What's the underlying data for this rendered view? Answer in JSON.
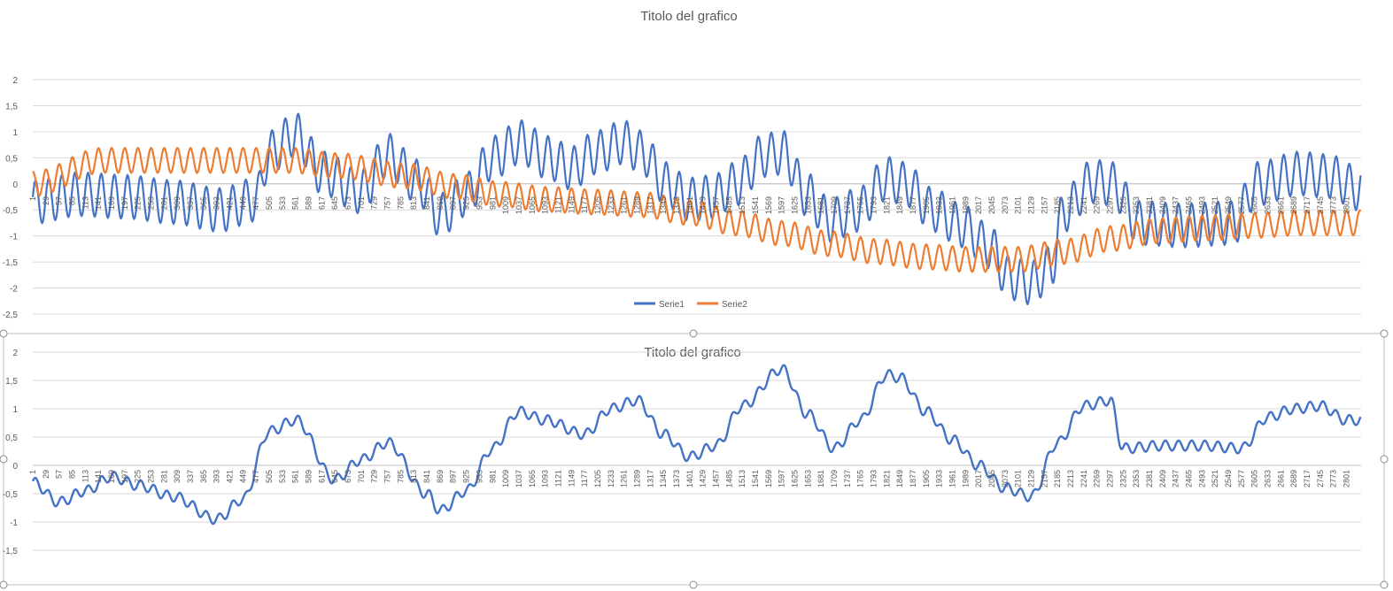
{
  "chart_data": [
    {
      "type": "line",
      "title": "Titolo del grafico",
      "x_range": [
        1,
        2832
      ],
      "ylim": [
        -2.5,
        2
      ],
      "y_ticks": [
        "2",
        "1,5",
        "1",
        "0,5",
        "0",
        "-0,5",
        "-1",
        "-1,5",
        "-2",
        "-2,5"
      ],
      "x_tick_labels": [
        "1",
        "29",
        "57",
        "85",
        "113",
        "141",
        "169",
        "197",
        "225",
        "253",
        "281",
        "309",
        "337",
        "365",
        "393",
        "421",
        "449",
        "477",
        "505",
        "533",
        "561",
        "589",
        "617",
        "645",
        "673",
        "701",
        "729",
        "757",
        "785",
        "813",
        "841",
        "869",
        "897",
        "925",
        "953",
        "981",
        "1009",
        "1037",
        "1065",
        "1093",
        "1121",
        "1149",
        "1177",
        "1205",
        "1233",
        "1261",
        "1289",
        "1317",
        "1345",
        "1373",
        "1401",
        "1429",
        "1457",
        "1485",
        "1513",
        "1541",
        "1569",
        "1597",
        "1625",
        "1653",
        "1681",
        "1709",
        "1737",
        "1765",
        "1793",
        "1821",
        "1849",
        "1877",
        "1905",
        "1933",
        "1961",
        "1989",
        "2017",
        "2045",
        "2073",
        "2101",
        "2129",
        "2157",
        "2185",
        "2213",
        "2241",
        "2269",
        "2297",
        "2325",
        "2353",
        "2381",
        "2409",
        "2437",
        "2465",
        "2493",
        "2521",
        "2549",
        "2577",
        "2605",
        "2633",
        "2661",
        "2689",
        "2717",
        "2745",
        "2773",
        "2801"
      ],
      "grid": true,
      "legend": "bottom-center",
      "series": [
        {
          "name": "Serie1",
          "color": "#4472C4",
          "envelope_x": [
            1,
            100,
            200,
            300,
            400,
            477,
            505,
            560,
            620,
            700,
            757,
            820,
            870,
            925,
            981,
            1040,
            1100,
            1150,
            1200,
            1260,
            1300,
            1350,
            1400,
            1450,
            1500,
            1560,
            1600,
            1650,
            1700,
            1760,
            1820,
            1860,
            1920,
            1980,
            2040,
            2080,
            2130,
            2170,
            2200,
            2260,
            2300,
            2360,
            2450,
            2560,
            2610,
            2700,
            2760,
            2832
          ],
          "envelope_y": [
            -0.35,
            -0.2,
            -0.25,
            -0.35,
            -0.5,
            -0.3,
            0.6,
            0.95,
            0.2,
            -0.15,
            0.55,
            0.05,
            -0.6,
            -0.2,
            0.5,
            0.8,
            0.5,
            0.3,
            0.6,
            0.8,
            0.6,
            0.0,
            -0.3,
            -0.25,
            0.0,
            0.55,
            0.6,
            -0.2,
            -0.7,
            -0.5,
            0.1,
            0.0,
            -0.5,
            -0.8,
            -1.2,
            -1.8,
            -1.9,
            -1.6,
            -0.5,
            0.05,
            0.0,
            -0.75,
            -0.8,
            -0.75,
            0.0,
            0.2,
            0.15,
            -0.1
          ],
          "ripple_amplitude": 0.42,
          "ripple_period": 28
        },
        {
          "name": "Serie2",
          "color": "#ED7D31",
          "envelope_x": [
            1,
            150,
            300,
            450,
            550,
            650,
            800,
            900,
            1000,
            1100,
            1200,
            1300,
            1400,
            1500,
            1600,
            1700,
            1800,
            1900,
            2000,
            2100,
            2200,
            2300,
            2400,
            2500,
            2600,
            2700,
            2832
          ],
          "envelope_y": [
            0.0,
            0.45,
            0.45,
            0.45,
            0.45,
            0.35,
            0.15,
            -0.05,
            -0.2,
            -0.3,
            -0.35,
            -0.4,
            -0.55,
            -0.75,
            -0.95,
            -1.15,
            -1.3,
            -1.4,
            -1.45,
            -1.45,
            -1.3,
            -1.05,
            -0.9,
            -0.85,
            -0.8,
            -0.75,
            -0.75
          ],
          "ripple_amplitude": 0.24,
          "ripple_period": 28
        }
      ]
    },
    {
      "type": "line",
      "title": "Titolo del grafico",
      "x_range": [
        1,
        2832
      ],
      "ylim": [
        -1.5,
        2
      ],
      "y_ticks": [
        "2",
        "1,5",
        "1",
        "0,5",
        "0",
        "-0,5",
        "-1",
        "-1,5"
      ],
      "x_tick_labels": [
        "1",
        "29",
        "57",
        "85",
        "113",
        "141",
        "169",
        "197",
        "225",
        "253",
        "281",
        "309",
        "337",
        "365",
        "393",
        "421",
        "449",
        "477",
        "505",
        "533",
        "561",
        "589",
        "617",
        "645",
        "673",
        "701",
        "729",
        "757",
        "785",
        "813",
        "841",
        "869",
        "897",
        "925",
        "953",
        "981",
        "1009",
        "1037",
        "1065",
        "1093",
        "1121",
        "1149",
        "1177",
        "1205",
        "1233",
        "1261",
        "1289",
        "1317",
        "1345",
        "1373",
        "1401",
        "1429",
        "1457",
        "1485",
        "1513",
        "1541",
        "1569",
        "1597",
        "1625",
        "1653",
        "1681",
        "1709",
        "1737",
        "1765",
        "1793",
        "1821",
        "1849",
        "1877",
        "1905",
        "1933",
        "1961",
        "1989",
        "2017",
        "2045",
        "2073",
        "2101",
        "2129",
        "2157",
        "2185",
        "2213",
        "2241",
        "2269",
        "2297",
        "2325",
        "2353",
        "2381",
        "2409",
        "2437",
        "2465",
        "2493",
        "2521",
        "2549",
        "2577",
        "2605",
        "2633",
        "2661",
        "2689",
        "2717",
        "2745",
        "2773",
        "2801"
      ],
      "grid": true,
      "series": [
        {
          "name": "",
          "color": "#4472C4",
          "envelope_x": [
            1,
            57,
            113,
            169,
            225,
            300,
            393,
            449,
            505,
            561,
            645,
            701,
            757,
            841,
            869,
            925,
            981,
            1037,
            1093,
            1177,
            1233,
            1289,
            1345,
            1401,
            1457,
            1513,
            1597,
            1653,
            1709,
            1765,
            1821,
            1849,
            1905,
            1961,
            2017,
            2073,
            2129,
            2185,
            2241,
            2297,
            2325,
            2409,
            2493,
            2577,
            2633,
            2689,
            2745,
            2801,
            2832
          ],
          "envelope_y": [
            -0.3,
            -0.65,
            -0.45,
            -0.2,
            -0.35,
            -0.55,
            -0.95,
            -0.6,
            0.6,
            0.8,
            -0.25,
            0.1,
            0.4,
            -0.5,
            -0.8,
            -0.45,
            0.3,
            0.95,
            0.8,
            0.55,
            1.0,
            1.15,
            0.55,
            0.15,
            0.35,
            1.05,
            1.7,
            0.9,
            0.3,
            0.8,
            1.6,
            1.55,
            0.95,
            0.45,
            0.0,
            -0.4,
            -0.55,
            0.4,
            1.05,
            1.15,
            0.3,
            0.35,
            0.35,
            0.3,
            0.85,
            1.0,
            1.05,
            0.8,
            0.8
          ],
          "ripple_amplitude": 0.09,
          "ripple_period": 28
        }
      ]
    }
  ]
}
